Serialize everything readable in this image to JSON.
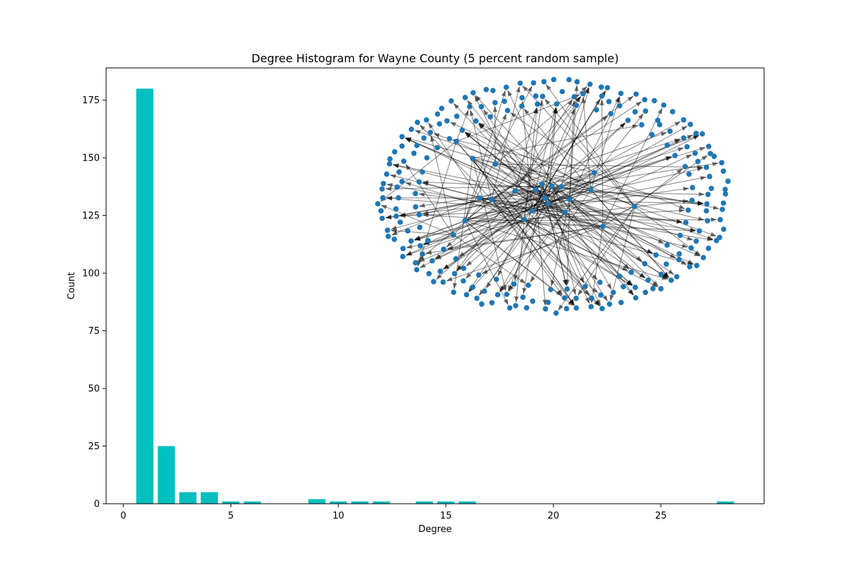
{
  "chart_data": {
    "type": "bar",
    "title": "Degree Histogram for Wayne County (5 percent random sample)",
    "xlabel": "Degree",
    "ylabel": "Count",
    "xlim": [
      -0.8,
      29.8
    ],
    "ylim": [
      0,
      189
    ],
    "xticks": [
      0,
      5,
      10,
      15,
      20,
      25
    ],
    "yticks": [
      0,
      25,
      50,
      75,
      100,
      125,
      150,
      175
    ],
    "bar_color": "#00bfbf",
    "bar_width": 0.8,
    "degrees": [
      1,
      2,
      3,
      4,
      5,
      6,
      9,
      10,
      11,
      12,
      14,
      15,
      16,
      28
    ],
    "counts": [
      180,
      25,
      5,
      5,
      1,
      1,
      2,
      1,
      1,
      1,
      1,
      1,
      1,
      1
    ],
    "grid": false,
    "inset": {
      "type": "network",
      "directed": true,
      "node_color": "#1f77b4",
      "edge_color": "#000000"
    }
  }
}
